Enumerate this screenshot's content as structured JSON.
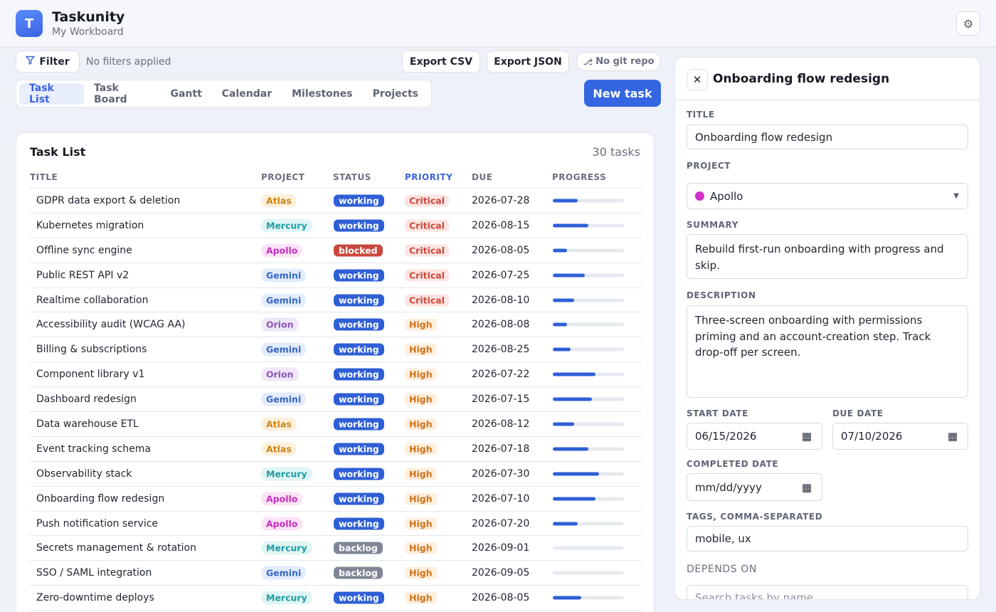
{
  "app": {
    "logo_letter": "T",
    "name": "Taskunity",
    "subtitle": "My Workboard"
  },
  "toolbar": {
    "filter_label": "Filter",
    "filter_status": "No filters applied",
    "export_csv": "Export CSV",
    "export_json": "Export JSON",
    "git_label": "No git repo"
  },
  "tabs": [
    "Task List",
    "Task Board",
    "Gantt",
    "Calendar",
    "Milestones",
    "Projects"
  ],
  "active_tab": "Task List",
  "new_task_label": "New task",
  "task_list": {
    "title": "Task List",
    "count": "30 tasks",
    "columns": [
      "TITLE",
      "PROJECT",
      "STATUS",
      "PRIORITY",
      "DUE",
      "PROGRESS"
    ],
    "sorted_column": "PRIORITY",
    "rows": [
      {
        "title": "GDPR data export & deletion",
        "project": "Atlas",
        "status": "working",
        "priority": "Critical",
        "due": "2026-07-28",
        "progress": 35
      },
      {
        "title": "Kubernetes migration",
        "project": "Mercury",
        "status": "working",
        "priority": "Critical",
        "due": "2026-08-15",
        "progress": 50
      },
      {
        "title": "Offline sync engine",
        "project": "Apollo",
        "status": "blocked",
        "priority": "Critical",
        "due": "2026-08-05",
        "progress": 20
      },
      {
        "title": "Public REST API v2",
        "project": "Gemini",
        "status": "working",
        "priority": "Critical",
        "due": "2026-07-25",
        "progress": 45
      },
      {
        "title": "Realtime collaboration",
        "project": "Gemini",
        "status": "working",
        "priority": "Critical",
        "due": "2026-08-10",
        "progress": 30
      },
      {
        "title": "Accessibility audit (WCAG AA)",
        "project": "Orion",
        "status": "working",
        "priority": "High",
        "due": "2026-08-08",
        "progress": 20
      },
      {
        "title": "Billing & subscriptions",
        "project": "Gemini",
        "status": "working",
        "priority": "High",
        "due": "2026-08-25",
        "progress": 25
      },
      {
        "title": "Component library v1",
        "project": "Orion",
        "status": "working",
        "priority": "High",
        "due": "2026-07-22",
        "progress": 60
      },
      {
        "title": "Dashboard redesign",
        "project": "Gemini",
        "status": "working",
        "priority": "High",
        "due": "2026-07-15",
        "progress": 55
      },
      {
        "title": "Data warehouse ETL",
        "project": "Atlas",
        "status": "working",
        "priority": "High",
        "due": "2026-08-12",
        "progress": 30
      },
      {
        "title": "Event tracking schema",
        "project": "Atlas",
        "status": "working",
        "priority": "High",
        "due": "2026-07-18",
        "progress": 50
      },
      {
        "title": "Observability stack",
        "project": "Mercury",
        "status": "working",
        "priority": "High",
        "due": "2026-07-30",
        "progress": 65
      },
      {
        "title": "Onboarding flow redesign",
        "project": "Apollo",
        "status": "working",
        "priority": "High",
        "due": "2026-07-10",
        "progress": 60
      },
      {
        "title": "Push notification service",
        "project": "Apollo",
        "status": "working",
        "priority": "High",
        "due": "2026-07-20",
        "progress": 35
      },
      {
        "title": "Secrets management & rotation",
        "project": "Mercury",
        "status": "backlog",
        "priority": "High",
        "due": "2026-09-01",
        "progress": 0
      },
      {
        "title": "SSO / SAML integration",
        "project": "Gemini",
        "status": "backlog",
        "priority": "High",
        "due": "2026-09-05",
        "progress": 0
      },
      {
        "title": "Zero-downtime deploys",
        "project": "Mercury",
        "status": "working",
        "priority": "High",
        "due": "2026-08-05",
        "progress": 40
      }
    ]
  },
  "project_colors": {
    "Atlas": {
      "bg": "#fdf0dc",
      "fg": "#c8841a"
    },
    "Mercury": {
      "bg": "#e0f5f5",
      "fg": "#1e9aa0"
    },
    "Apollo": {
      "bg": "#fbe3f7",
      "fg": "#c42dbb"
    },
    "Gemini": {
      "bg": "#e3ecfb",
      "fg": "#3465c4"
    },
    "Orion": {
      "bg": "#efe6f7",
      "fg": "#8a55b8"
    }
  },
  "status_colors": {
    "working": "#2f5fd6",
    "blocked": "#c9483c",
    "backlog": "#7f8796"
  },
  "priority_colors": {
    "Critical": {
      "bg": "#fbe4e2",
      "fg": "#c9483c"
    },
    "High": {
      "bg": "#fdeede",
      "fg": "#d0731a"
    }
  },
  "panel": {
    "title": "Onboarding flow redesign",
    "title_label": "TITLE",
    "title_value": "Onboarding flow redesign",
    "project_label": "PROJECT",
    "project_value": "Apollo",
    "summary_label": "SUMMARY",
    "summary_value": "Rebuild first-run onboarding with progress and skip.",
    "description_label": "DESCRIPTION",
    "description_value": "Three-screen onboarding with permissions priming and an account-creation step. Track drop-off per screen.",
    "start_label": "START DATE",
    "start_value": "06/15/2026",
    "due_label": "DUE DATE",
    "due_value": "07/10/2026",
    "completed_label": "COMPLETED DATE",
    "completed_placeholder": "mm/dd/yyyy",
    "tags_label": "TAGS, COMMA-SEPARATED",
    "tags_value": "mobile, ux",
    "depends_label": "DEPENDS ON",
    "depends_placeholder": "Search tasks by name"
  },
  "icons": {
    "filter": "filter-icon",
    "settings": "gear-icon",
    "close": "close-icon",
    "git": "git-branch-icon",
    "calendar": "calendar-icon",
    "dropdown": "chevron-down-icon"
  }
}
